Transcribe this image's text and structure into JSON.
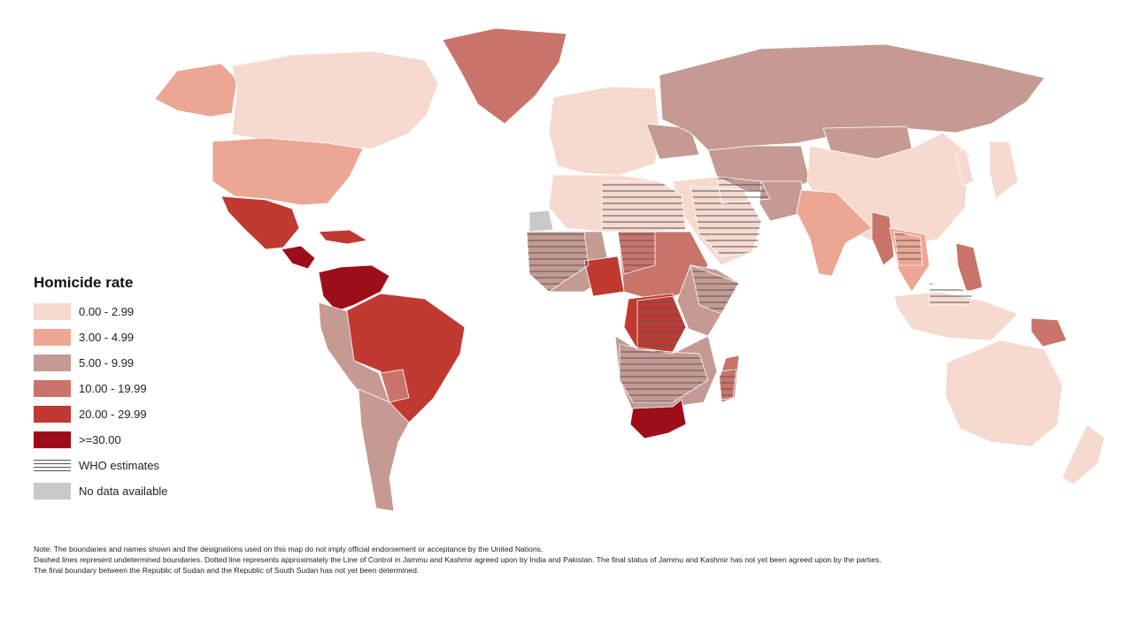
{
  "legend": {
    "title": "Homicide rate",
    "items": [
      {
        "label": "0.00 - 2.99",
        "color": "#f6d9cf"
      },
      {
        "label": "3.00 - 4.99",
        "color": "#eba794"
      },
      {
        "label": "5.00 - 9.99",
        "color": "#c49a93"
      },
      {
        "label": "10.00 - 19.99",
        "color": "#c9746a"
      },
      {
        "label": "20.00 - 29.99",
        "color": "#c03a32"
      },
      {
        "label": ">=30.00",
        "color": "#9d0e1a"
      },
      {
        "label": "WHO estimates",
        "pattern": "hatch"
      },
      {
        "label": "No data available",
        "color": "#c9c9c9"
      }
    ]
  },
  "notes": [
    "Note: The boundaries and names shown and the designations used on this map do not imply official endorsement or acceptance by the United Nations.",
    "Dashed lines represent undetermined boundaries. Dotted line represents approximately the Line of Control in Jammu and Kashmir agreed upon by India and Pakistan. The final status of Jammu and Kashmir has not yet been agreed upon by the parties.",
    "The final boundary between the Republic of Sudan and the Republic of South Sudan has not yet been determined."
  ],
  "regions": [
    {
      "name": "Greenland",
      "class": 3
    },
    {
      "name": "Alaska",
      "class": 1
    },
    {
      "name": "Canada",
      "class": 0
    },
    {
      "name": "United States",
      "class": 1
    },
    {
      "name": "Mexico",
      "class": 4
    },
    {
      "name": "Central America",
      "class": 5
    },
    {
      "name": "Caribbean",
      "class": 4
    },
    {
      "name": "Venezuela and Colombia",
      "class": 5
    },
    {
      "name": "Brazil",
      "class": 4
    },
    {
      "name": "Peru and Bolivia",
      "class": 2
    },
    {
      "name": "Southern Cone",
      "class": 2
    },
    {
      "name": "Paraguay",
      "class": 3
    },
    {
      "name": "Western Europe",
      "class": 0
    },
    {
      "name": "Eastern Europe",
      "class": 2
    },
    {
      "name": "Russia",
      "class": 2
    },
    {
      "name": "Central Asia",
      "class": 2
    },
    {
      "name": "Middle East",
      "class": 0
    },
    {
      "name": "North Africa",
      "class": 0
    },
    {
      "name": "West Africa",
      "class": 2
    },
    {
      "name": "Nigeria",
      "class": 4
    },
    {
      "name": "Central Africa",
      "class": 3
    },
    {
      "name": "DR Congo",
      "class": 4
    },
    {
      "name": "East Africa",
      "class": 2
    },
    {
      "name": "Southern Africa",
      "class": 2
    },
    {
      "name": "South Africa",
      "class": 5
    },
    {
      "name": "Madagascar",
      "class": 3
    },
    {
      "name": "India",
      "class": 1
    },
    {
      "name": "China",
      "class": 0
    },
    {
      "name": "Mongolia",
      "class": 2
    },
    {
      "name": "Japan and Korea",
      "class": 0
    },
    {
      "name": "Southeast Asia",
      "class": 1
    },
    {
      "name": "Myanmar",
      "class": 3
    },
    {
      "name": "Philippines",
      "class": 3
    },
    {
      "name": "Indonesia",
      "class": 0
    },
    {
      "name": "Papua New Guinea",
      "class": 3
    },
    {
      "name": "Australia",
      "class": 0
    },
    {
      "name": "New Zealand",
      "class": 0
    },
    {
      "name": "Afghanistan",
      "class": 2
    },
    {
      "name": "Western Sahara",
      "class": 7
    }
  ]
}
